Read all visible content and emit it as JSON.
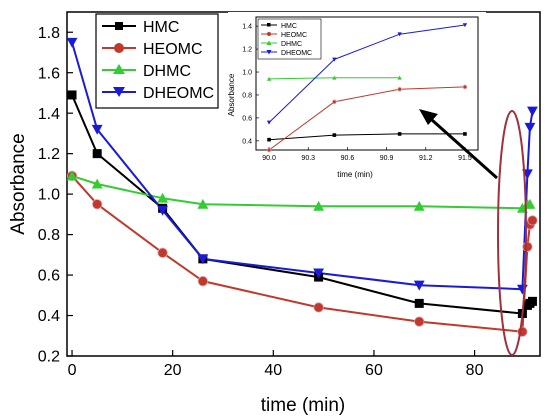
{
  "chart_data": [
    {
      "type": "line",
      "xlabel": "time (min)",
      "ylabel": "Absorbance",
      "xlim": [
        -1,
        93
      ],
      "ylim": [
        0.2,
        1.9
      ],
      "xticks": [
        0,
        20,
        40,
        60,
        80
      ],
      "yticks": [
        0.2,
        0.4,
        0.6,
        0.8,
        1.0,
        1.2,
        1.4,
        1.6,
        1.8
      ],
      "xtick_labels": [
        "0",
        "20",
        "40",
        "60",
        "80"
      ],
      "ytick_labels": [
        "0.2",
        "0.4",
        "0.6",
        "0.8",
        "1.0",
        "1.2",
        "1.4",
        "1.6",
        "1.8"
      ],
      "legend_position": "top-left",
      "series": [
        {
          "name": "HMC",
          "color": "#000000",
          "marker": "square",
          "x": [
            0,
            5,
            18,
            26,
            49,
            69,
            89.5,
            90.5,
            91.0,
            91.5
          ],
          "y": [
            1.49,
            1.2,
            0.93,
            0.68,
            0.59,
            0.46,
            0.41,
            0.45,
            0.46,
            0.47
          ]
        },
        {
          "name": "HEOMC",
          "color": "#c0392b",
          "marker": "circle",
          "x": [
            0,
            5,
            18,
            26,
            49,
            69,
            89.5,
            90.5,
            91.0,
            91.5
          ],
          "y": [
            1.09,
            0.95,
            0.71,
            0.57,
            0.44,
            0.37,
            0.32,
            0.74,
            0.85,
            0.87
          ]
        },
        {
          "name": "DHMC",
          "color": "#33cc33",
          "marker": "triangle-up",
          "x": [
            0,
            5,
            18,
            26,
            49,
            69,
            89.5,
            90.5,
            91.0
          ],
          "y": [
            1.09,
            1.05,
            0.98,
            0.95,
            0.94,
            0.94,
            0.93,
            0.95,
            0.95
          ]
        },
        {
          "name": "DHEOMC",
          "color": "#1a1adb",
          "marker": "triangle-down",
          "x": [
            0,
            5,
            18,
            26,
            49,
            69,
            89.5,
            90.5,
            91.0,
            91.5
          ],
          "y": [
            1.75,
            1.32,
            0.92,
            0.68,
            0.61,
            0.55,
            0.53,
            1.1,
            1.33,
            1.41
          ]
        }
      ]
    },
    {
      "type": "line",
      "xlabel": "time (min)",
      "ylabel": "Absorbance",
      "xlim": [
        89.9,
        91.6
      ],
      "ylim": [
        0.32,
        1.48
      ],
      "xticks": [
        90.0,
        90.3,
        90.6,
        90.9,
        91.2,
        91.5
      ],
      "yticks": [
        0.4,
        0.6,
        0.8,
        1.0,
        1.2,
        1.4
      ],
      "xtick_labels": [
        "90.0",
        "90.3",
        "90.6",
        "90.9",
        "91.2",
        "91.5"
      ],
      "ytick_labels": [
        "0.4",
        "0.6",
        "0.8",
        "1.0",
        "1.2",
        "1.4"
      ],
      "legend_position": "top-left",
      "series": [
        {
          "name": "HMC",
          "color": "#000000",
          "marker": "square",
          "x": [
            90.0,
            90.5,
            91.0,
            91.5
          ],
          "y": [
            0.41,
            0.45,
            0.46,
            0.46
          ]
        },
        {
          "name": "HEOMC",
          "color": "#c0392b",
          "marker": "circle",
          "x": [
            90.0,
            90.5,
            91.0,
            91.5
          ],
          "y": [
            0.32,
            0.74,
            0.85,
            0.87
          ]
        },
        {
          "name": "DHMC",
          "color": "#33cc33",
          "marker": "triangle-up",
          "x": [
            90.0,
            90.5,
            91.0
          ],
          "y": [
            0.94,
            0.95,
            0.95
          ]
        },
        {
          "name": "DHEOMC",
          "color": "#1a1adb",
          "marker": "triangle-down",
          "x": [
            90.0,
            90.5,
            91.0,
            91.5
          ],
          "y": [
            0.56,
            1.11,
            1.33,
            1.41
          ]
        }
      ]
    }
  ]
}
